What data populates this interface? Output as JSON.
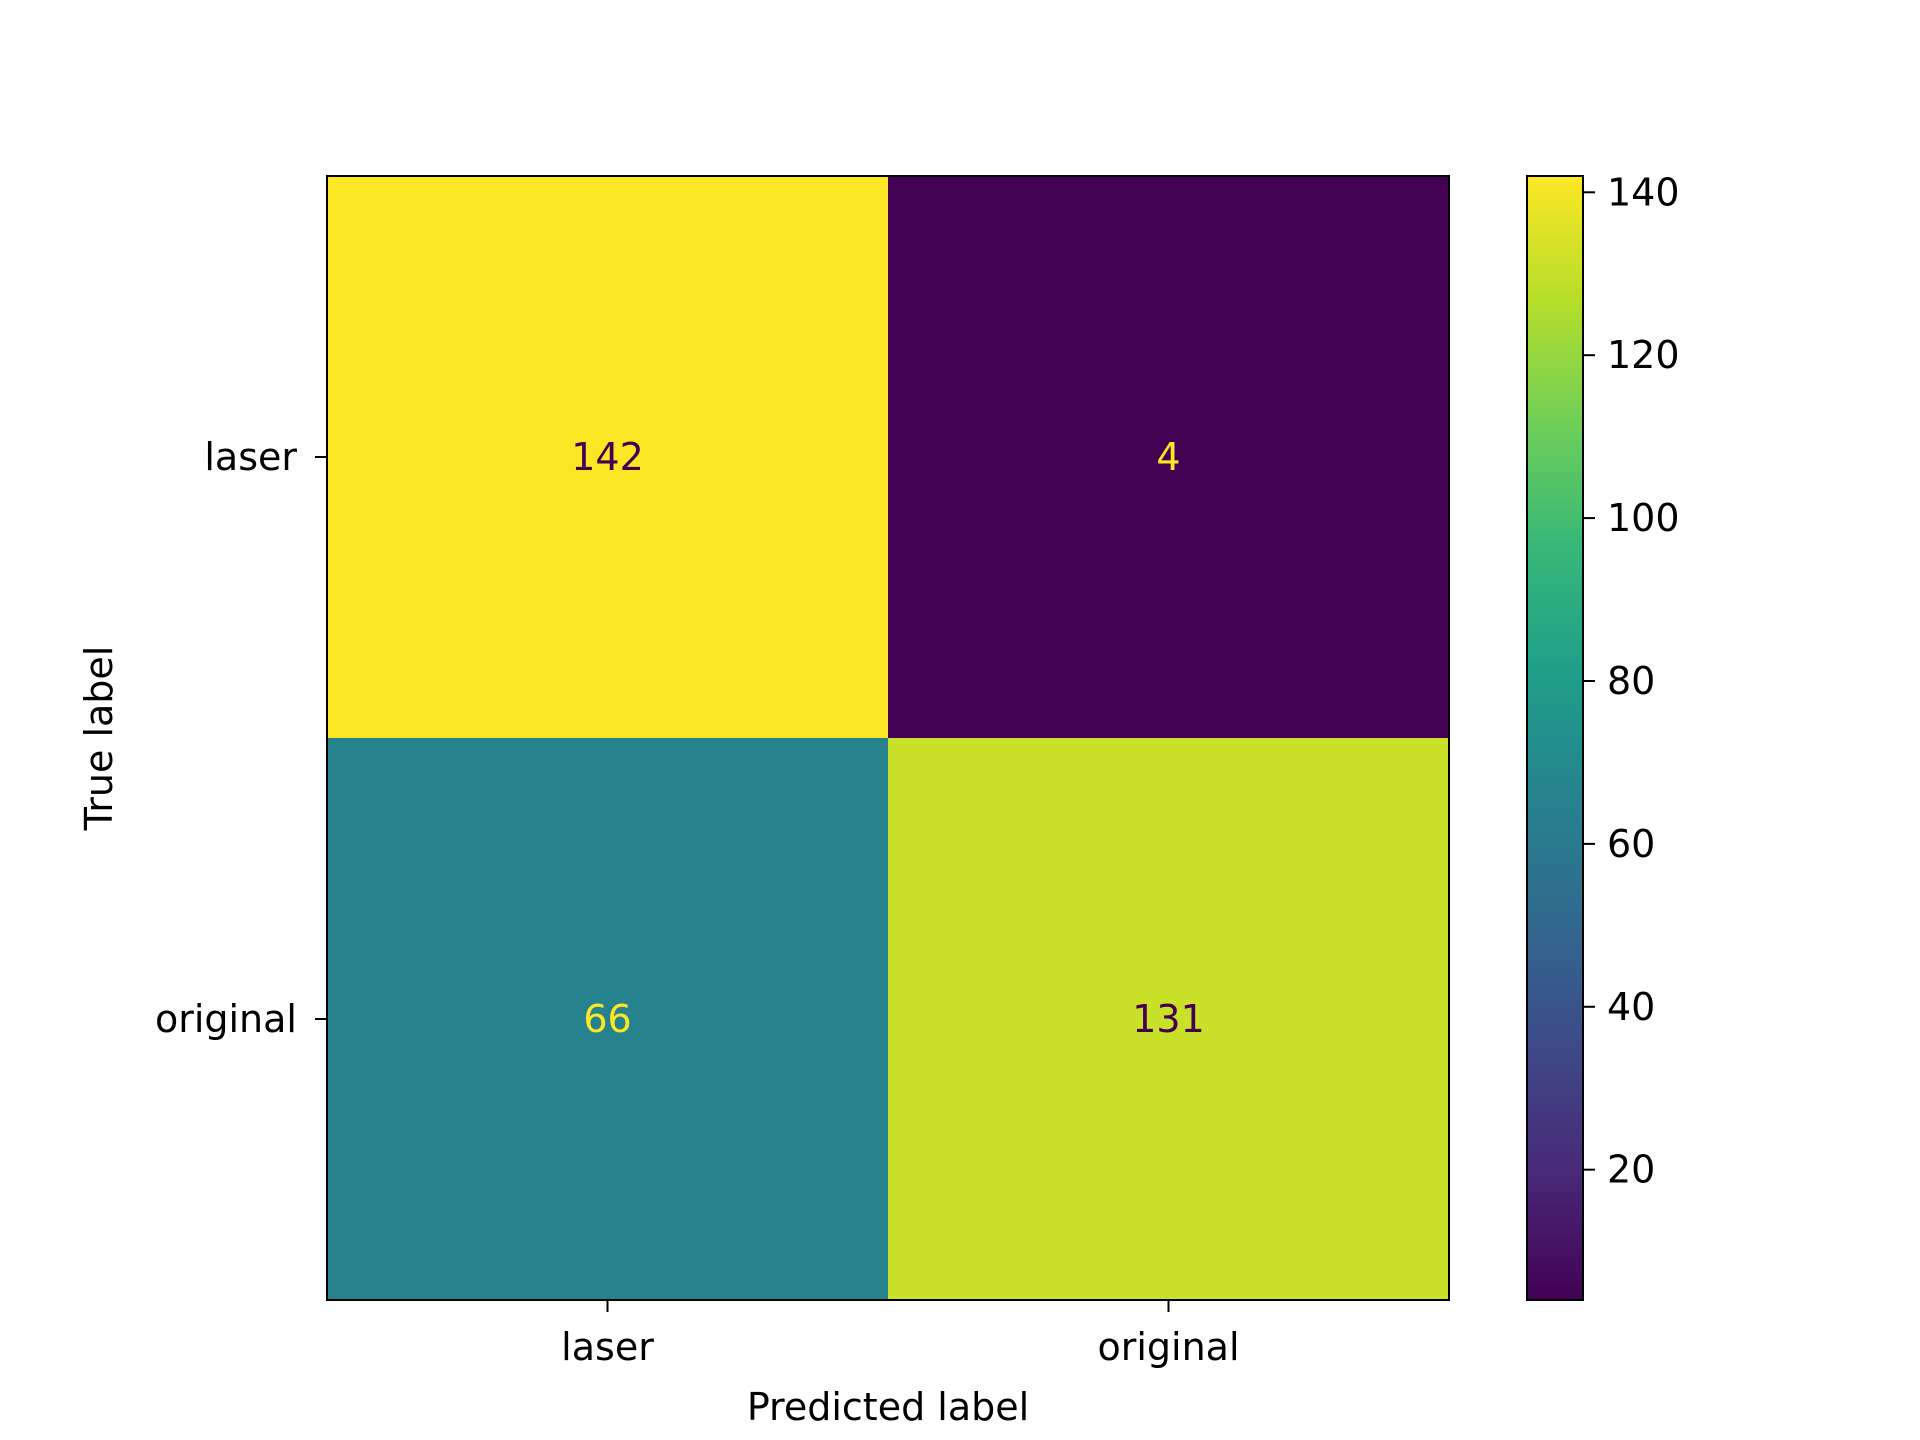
{
  "chart_data": {
    "type": "heatmap",
    "title": "",
    "xlabel": "Predicted label",
    "ylabel": "True label",
    "x_categories": [
      "laser",
      "original"
    ],
    "y_categories": [
      "laser",
      "original"
    ],
    "matrix": [
      [
        142,
        4
      ],
      [
        66,
        131
      ]
    ],
    "colorbar": {
      "min": 4,
      "max": 142,
      "ticks": [
        20,
        40,
        60,
        80,
        100,
        120,
        140
      ],
      "colormap": "viridis"
    },
    "grid": false
  }
}
